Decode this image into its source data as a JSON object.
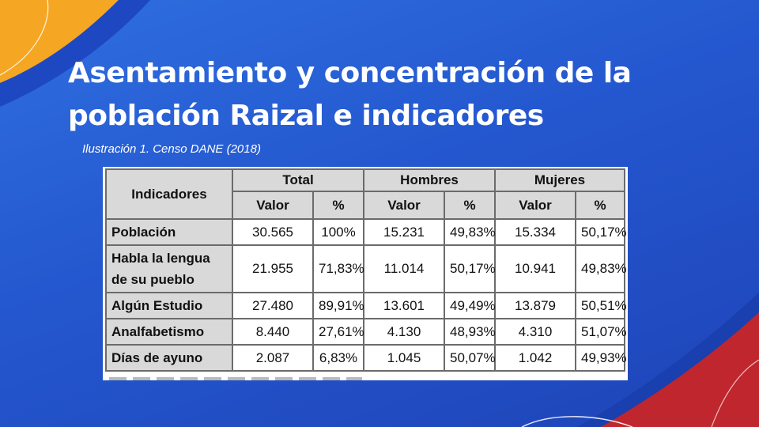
{
  "slide": {
    "title_line1": "Asentamiento y concentración de la",
    "title_line2": "población Raizal e indicadores",
    "caption": "Ilustración 1. Censo DANE (2018)"
  },
  "colors": {
    "background": "#2457cf",
    "accent_orange": "#f5a623",
    "accent_red": "#c0262d",
    "header_fill": "#d9d9d9"
  },
  "table": {
    "header": {
      "indicadores": "Indicadores",
      "groups": [
        "Total",
        "Hombres",
        "Mujeres"
      ],
      "sub": [
        "Valor",
        "%",
        "Valor",
        "%",
        "Valor",
        "%"
      ]
    },
    "rows": [
      {
        "label": "Población",
        "cells": [
          "30.565",
          "100%",
          "15.231",
          "49,83%",
          "15.334",
          "50,17%"
        ]
      },
      {
        "label": "Habla la lengua de su pueblo",
        "cells": [
          "21.955",
          "71,83%",
          "11.014",
          "50,17%",
          "10.941",
          "49,83%"
        ]
      },
      {
        "label": "Algún Estudio",
        "cells": [
          "27.480",
          "89,91%",
          "13.601",
          "49,49%",
          "13.879",
          "50,51%"
        ]
      },
      {
        "label": "Analfabetismo",
        "cells": [
          "8.440",
          "27,61%",
          "4.130",
          "48,93%",
          "4.310",
          "51,07%"
        ]
      },
      {
        "label": "Días de ayuno",
        "cells": [
          "2.087",
          "6,83%",
          "1.045",
          "50,07%",
          "1.042",
          "49,93%"
        ]
      }
    ]
  }
}
